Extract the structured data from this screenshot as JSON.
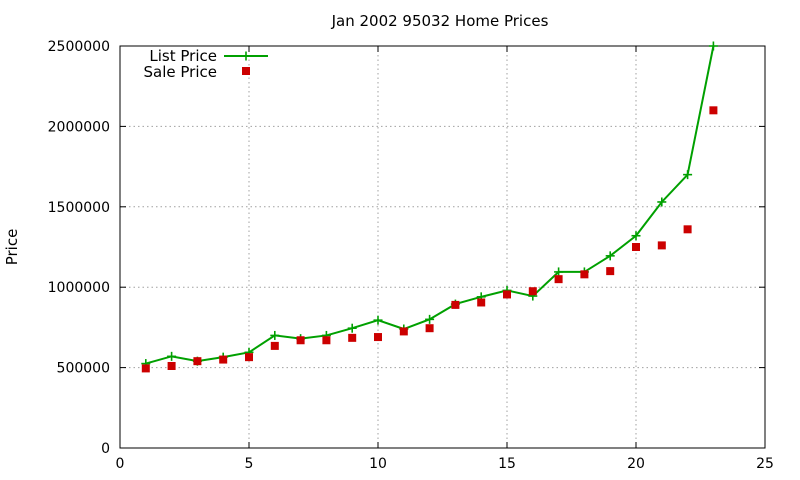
{
  "chart_data": {
    "type": "line",
    "title": "Jan 2002 95032 Home Prices",
    "xlabel": "",
    "ylabel": "Price",
    "xlim": [
      0,
      25
    ],
    "ylim": [
      0,
      2500000
    ],
    "x_ticks": [
      0,
      5,
      10,
      15,
      20,
      25
    ],
    "y_ticks": [
      0,
      500000,
      1000000,
      1500000,
      2000000,
      2500000
    ],
    "grid": true,
    "legend_position": "top-left",
    "x": [
      1,
      2,
      3,
      4,
      5,
      6,
      7,
      8,
      9,
      10,
      11,
      12,
      13,
      14,
      15,
      16,
      17,
      18,
      19,
      20,
      21,
      22,
      23
    ],
    "series": [
      {
        "name": "List Price",
        "style": "lines+points",
        "marker": "plus",
        "color": "#00a000",
        "values": [
          525000,
          570000,
          540000,
          565000,
          595000,
          700000,
          680000,
          700000,
          745000,
          795000,
          740000,
          800000,
          895000,
          940000,
          980000,
          945000,
          1095000,
          1095000,
          1195000,
          1320000,
          1530000,
          1700000,
          2500000
        ]
      },
      {
        "name": "Sale Price",
        "style": "points",
        "marker": "square",
        "color": "#cc0000",
        "values": [
          495000,
          510000,
          540000,
          550000,
          565000,
          635000,
          670000,
          670000,
          685000,
          690000,
          725000,
          745000,
          890000,
          905000,
          955000,
          975000,
          1050000,
          1080000,
          1100000,
          1250000,
          1260000,
          1360000,
          2100000
        ]
      }
    ]
  }
}
